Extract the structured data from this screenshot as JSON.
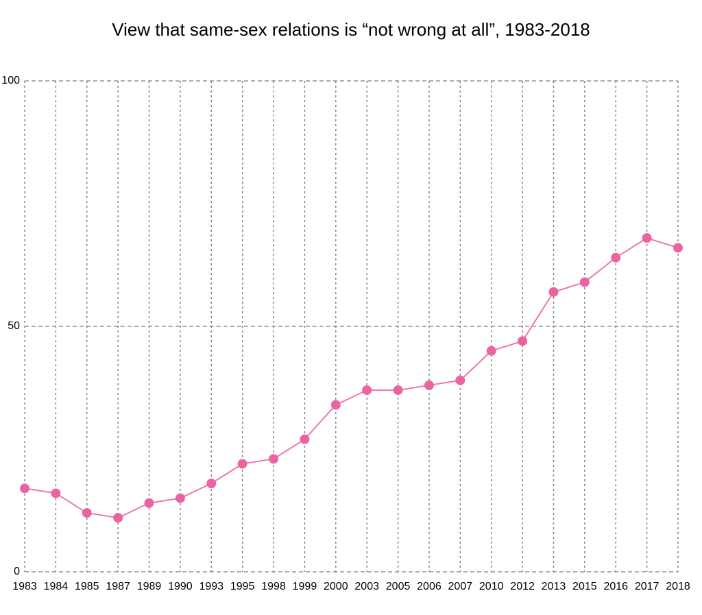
{
  "page": {
    "background_color": "#ffffff"
  },
  "chart_data": {
    "type": "line",
    "title": "View that same-sex relations is “not wrong at all”, 1983-2018",
    "categories": [
      "1983",
      "1984",
      "1985",
      "1987",
      "1989",
      "1990",
      "1993",
      "1995",
      "1998",
      "1999",
      "2000",
      "2003",
      "2005",
      "2006",
      "2007",
      "2010",
      "2012",
      "2013",
      "2015",
      "2016",
      "2017",
      "2018"
    ],
    "values": [
      17,
      16,
      12,
      11,
      14,
      15,
      18,
      22,
      23,
      27,
      34,
      37,
      37,
      38,
      39,
      45,
      47,
      57,
      59,
      64,
      68,
      66
    ],
    "xlabel": "",
    "ylabel": "",
    "ylim": [
      0,
      100
    ],
    "yticks": [
      0,
      50,
      100
    ],
    "legend": "none",
    "grid": {
      "vertical_per_category": true,
      "horizontal_at_yticks": true,
      "line_style": "dashed"
    },
    "colors": {
      "line": "#ee78ab",
      "marker": "#eb64a2",
      "gridline": "#7a7a7a",
      "text": "#000000"
    }
  }
}
